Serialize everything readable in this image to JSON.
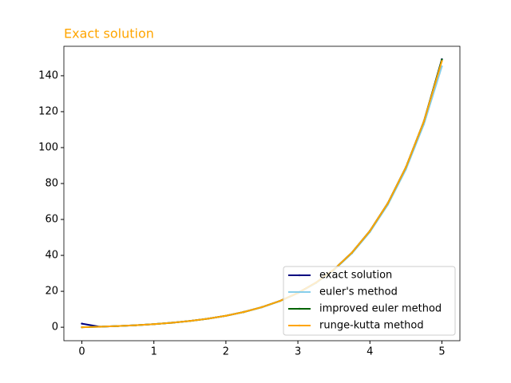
{
  "chart_data": {
    "type": "line",
    "title": "Exact solution",
    "x": [
      0,
      0.25,
      0.5,
      0.75,
      1,
      1.25,
      1.5,
      1.75,
      2,
      2.25,
      2.5,
      2.75,
      3,
      3.25,
      3.5,
      3.75,
      4,
      4.25,
      4.5,
      4.75,
      5
    ],
    "series": [
      {
        "name": "exact solution",
        "color": "#000080",
        "values": [
          2,
          0.28,
          0.65,
          1.12,
          1.72,
          2.49,
          3.48,
          4.75,
          6.39,
          8.49,
          11.18,
          14.64,
          19.09,
          24.79,
          32.12,
          41.52,
          53.6,
          69.11,
          89.02,
          114.58,
          149.2
        ]
      },
      {
        "name": "euler's method",
        "color": "#87ceeb",
        "values": [
          0,
          0.28,
          0.65,
          1.12,
          1.71,
          2.48,
          3.46,
          4.72,
          6.35,
          8.43,
          11.1,
          14.52,
          18.92,
          24.54,
          31.78,
          41.06,
          52.96,
          68.21,
          87.82,
          112.97,
          145.2
        ]
      },
      {
        "name": "improved euler method",
        "color": "#006400",
        "values": [
          0,
          0.28,
          0.65,
          1.12,
          1.72,
          2.49,
          3.48,
          4.75,
          6.39,
          8.49,
          11.18,
          14.64,
          19.09,
          24.79,
          32.12,
          41.52,
          53.6,
          69.11,
          89.02,
          114.58,
          149.0
        ]
      },
      {
        "name": "runge-kutta method",
        "color": "#ffa500",
        "values": [
          0,
          0.28,
          0.65,
          1.12,
          1.72,
          2.49,
          3.48,
          4.75,
          6.39,
          8.49,
          11.18,
          14.64,
          19.09,
          24.79,
          32.12,
          41.52,
          53.6,
          69.11,
          89.02,
          114.58,
          148.2
        ]
      }
    ],
    "xlim": [
      -0.25,
      5.25
    ],
    "ylim": [
      -7.5,
      156.4
    ],
    "xticks": [
      0,
      1,
      2,
      3,
      4,
      5
    ],
    "yticks": [
      0,
      20,
      40,
      60,
      80,
      100,
      120,
      140
    ],
    "legend": "lower right"
  }
}
